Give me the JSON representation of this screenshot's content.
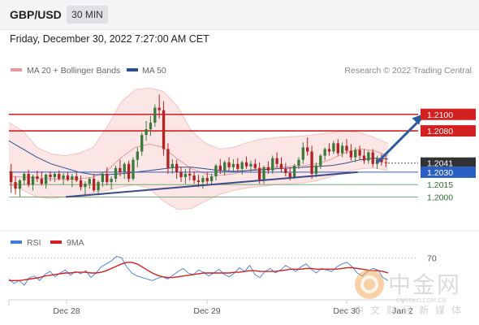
{
  "header": {
    "symbol": "GBP/USD",
    "timeframe": "30 MIN",
    "datetime": "Friday, December 30, 2022 7:27:00 AM CET"
  },
  "legend": {
    "bollinger_label": "MA 20 + Bollinger Bands",
    "ma50_label": "MA 50",
    "copyright": "Research © 2022 Trading Central"
  },
  "rsi_legend": {
    "rsi_label": "RSI",
    "ma_label": "9MA"
  },
  "watermark": {
    "name": "中金网",
    "domain": "CNGOLD.COM.CN",
    "tagline": "中文财经新媒体"
  },
  "colors": {
    "resistance": "#d32020",
    "pivot": "#2b5fc2",
    "support": "#5fa35f",
    "bull": "#3a7a3a",
    "bear": "#b22222",
    "last_price": "#333333",
    "bollinger_fill": "#fbe0e0",
    "ma20": "#e89a9a",
    "ma50": "#2d4f8e",
    "rsi_line": "#3f7cdb",
    "rsi_ma": "#d32020",
    "arrow": "#2d5aa0"
  },
  "chart_data": [
    {
      "type": "candlestick",
      "title": "GBP/USD",
      "ylim": [
        1.1965,
        1.2145
      ],
      "x_labels": [
        "Dec 28",
        "Dec 29",
        "Dec 30",
        "Jan 2"
      ],
      "levels": [
        {
          "name": "resistance-2",
          "value": 1.21,
          "label": "1.2100",
          "kind": "resistance"
        },
        {
          "name": "resistance-1",
          "value": 1.208,
          "label": "1.2080",
          "kind": "resistance"
        },
        {
          "name": "last-price",
          "value": 1.2041,
          "label": "1.2041",
          "kind": "last"
        },
        {
          "name": "pivot",
          "value": 1.203,
          "label": "1.2030",
          "kind": "pivot"
        },
        {
          "name": "support-1",
          "value": 1.2015,
          "label": "1.2015",
          "kind": "support"
        },
        {
          "name": "support-2",
          "value": 1.2,
          "label": "1.2000",
          "kind": "support"
        }
      ],
      "candles": [
        [
          1.2031,
          1.204,
          1.2005,
          1.2018
        ],
        [
          1.2018,
          1.2025,
          1.2003,
          1.201
        ],
        [
          1.201,
          1.2022,
          1.2,
          1.202
        ],
        [
          1.202,
          1.203,
          1.2015,
          1.2028
        ],
        [
          1.2028,
          1.2033,
          1.2012,
          1.2015
        ],
        [
          1.2015,
          1.2027,
          1.2008,
          1.2025
        ],
        [
          1.2025,
          1.2032,
          1.2018,
          1.2022
        ],
        [
          1.2022,
          1.2031,
          1.2014,
          1.2016
        ],
        [
          1.2016,
          1.2028,
          1.201,
          1.2027
        ],
        [
          1.2027,
          1.2031,
          1.2019,
          1.2024
        ],
        [
          1.2024,
          1.203,
          1.2018,
          1.2028
        ],
        [
          1.2028,
          1.2032,
          1.202,
          1.2022
        ],
        [
          1.2022,
          1.2029,
          1.2015,
          1.2026
        ],
        [
          1.2026,
          1.203,
          1.2019,
          1.2021
        ],
        [
          1.2021,
          1.2028,
          1.2012,
          1.2025
        ],
        [
          1.2025,
          1.203,
          1.2018,
          1.202
        ],
        [
          1.202,
          1.2026,
          1.2008,
          1.2012
        ],
        [
          1.2012,
          1.2019,
          1.2003,
          1.2016
        ],
        [
          1.2016,
          1.2024,
          1.201,
          1.2022
        ],
        [
          1.2022,
          1.2028,
          1.2006,
          1.2008
        ],
        [
          1.2008,
          1.202,
          1.2002,
          1.2018
        ],
        [
          1.2018,
          1.203,
          1.2012,
          1.2028
        ],
        [
          1.2028,
          1.2036,
          1.2014,
          1.2018
        ],
        [
          1.2018,
          1.2025,
          1.2009,
          1.2022
        ],
        [
          1.2022,
          1.2038,
          1.2018,
          1.2035
        ],
        [
          1.2035,
          1.2045,
          1.2025,
          1.203
        ],
        [
          1.203,
          1.2042,
          1.2022,
          1.204
        ],
        [
          1.204,
          1.2044,
          1.2018,
          1.2022
        ],
        [
          1.2022,
          1.2048,
          1.202,
          1.2045
        ],
        [
          1.2045,
          1.206,
          1.2036,
          1.2055
        ],
        [
          1.2055,
          1.2078,
          1.205,
          1.2075
        ],
        [
          1.2075,
          1.2092,
          1.2068,
          1.2082
        ],
        [
          1.2082,
          1.2098,
          1.2074,
          1.209
        ],
        [
          1.209,
          1.2112,
          1.2085,
          1.2108
        ],
        [
          1.2108,
          1.2124,
          1.2095,
          1.2105
        ],
        [
          1.2105,
          1.2116,
          1.205,
          1.2058
        ],
        [
          1.2058,
          1.2065,
          1.2028,
          1.2035
        ],
        [
          1.2035,
          1.2046,
          1.2028,
          1.204
        ],
        [
          1.204,
          1.2045,
          1.2022,
          1.203
        ],
        [
          1.203,
          1.2036,
          1.2018,
          1.2024
        ],
        [
          1.2024,
          1.2034,
          1.2016,
          1.2028
        ],
        [
          1.2028,
          1.2035,
          1.202,
          1.2026
        ],
        [
          1.2026,
          1.2031,
          1.2016,
          1.202
        ],
        [
          1.202,
          1.2027,
          1.2012,
          1.2018
        ],
        [
          1.2018,
          1.2026,
          1.201,
          1.2023
        ],
        [
          1.2023,
          1.203,
          1.2015,
          1.2019
        ],
        [
          1.2019,
          1.2028,
          1.2014,
          1.2025
        ],
        [
          1.2025,
          1.204,
          1.202,
          1.2038
        ],
        [
          1.2038,
          1.2046,
          1.2028,
          1.2032
        ],
        [
          1.2032,
          1.2044,
          1.2026,
          1.2042
        ],
        [
          1.2042,
          1.2048,
          1.2032,
          1.2036
        ],
        [
          1.2036,
          1.2046,
          1.203,
          1.204
        ],
        [
          1.204,
          1.2047,
          1.2031,
          1.2034
        ],
        [
          1.2034,
          1.2044,
          1.2027,
          1.2042
        ],
        [
          1.2042,
          1.2049,
          1.2034,
          1.2037
        ],
        [
          1.2037,
          1.2044,
          1.203,
          1.204
        ],
        [
          1.204,
          1.2046,
          1.2033,
          1.2035
        ],
        [
          1.2035,
          1.2042,
          1.2016,
          1.202
        ],
        [
          1.202,
          1.2038,
          1.2016,
          1.2036
        ],
        [
          1.2036,
          1.2043,
          1.2028,
          1.2032
        ],
        [
          1.2032,
          1.205,
          1.2028,
          1.2047
        ],
        [
          1.2047,
          1.2054,
          1.2035,
          1.204
        ],
        [
          1.204,
          1.2048,
          1.203,
          1.2034
        ],
        [
          1.2034,
          1.2041,
          1.2025,
          1.2029
        ],
        [
          1.2029,
          1.2036,
          1.202,
          1.2024
        ],
        [
          1.2024,
          1.204,
          1.2022,
          1.2038
        ],
        [
          1.2038,
          1.2048,
          1.2034,
          1.2045
        ],
        [
          1.2045,
          1.2066,
          1.204,
          1.206
        ],
        [
          1.206,
          1.2072,
          1.205,
          1.2055
        ],
        [
          1.2055,
          1.2062,
          1.2022,
          1.2028
        ],
        [
          1.2028,
          1.2042,
          1.2024,
          1.2038
        ],
        [
          1.2038,
          1.2052,
          1.2034,
          1.205
        ],
        [
          1.205,
          1.206,
          1.2044,
          1.2058
        ],
        [
          1.2058,
          1.2065,
          1.205,
          1.2055
        ],
        [
          1.2055,
          1.2068,
          1.2052,
          1.2065
        ],
        [
          1.2065,
          1.207,
          1.205,
          1.2053
        ],
        [
          1.2053,
          1.2066,
          1.2048,
          1.2062
        ],
        [
          1.2062,
          1.207,
          1.2052,
          1.2056
        ],
        [
          1.2056,
          1.2064,
          1.2044,
          1.2048
        ],
        [
          1.2048,
          1.206,
          1.2042,
          1.2057
        ],
        [
          1.2057,
          1.2062,
          1.2045,
          1.205
        ],
        [
          1.205,
          1.2058,
          1.204,
          1.2044
        ],
        [
          1.2044,
          1.2056,
          1.204,
          1.2054
        ],
        [
          1.2054,
          1.2058,
          1.2036,
          1.204
        ],
        [
          1.204,
          1.205,
          1.2034,
          1.2046
        ],
        [
          1.2046,
          1.2052,
          1.2038,
          1.2042
        ],
        [
          1.2042,
          1.205,
          1.2036,
          1.2041
        ]
      ],
      "ma20": [
        1.2025,
        1.2024,
        1.2023,
        1.2022,
        1.2021,
        1.2022,
        1.2024,
        1.2032,
        1.2048,
        1.206,
        1.2064,
        1.206,
        1.2046,
        1.2034,
        1.2028,
        1.2026,
        1.2028,
        1.2032,
        1.2035,
        1.2036,
        1.2037,
        1.2038,
        1.204,
        1.2046,
        1.2054,
        1.2058,
        1.2056,
        1.205
      ],
      "ma50": [
        1.2068,
        1.2058,
        1.2048,
        1.204,
        1.2035,
        1.203,
        1.2027,
        1.2027,
        1.2028,
        1.203,
        1.2032,
        1.2034,
        1.2036,
        1.2036,
        1.2034,
        1.2032,
        1.2031,
        1.2032,
        1.2033,
        1.2034,
        1.2035,
        1.2036,
        1.2037,
        1.2038,
        1.2041,
        1.2045,
        1.2047,
        1.2046
      ],
      "bb_upper": [
        1.209,
        1.208,
        1.206,
        1.2052,
        1.205,
        1.2053,
        1.206,
        1.2085,
        1.2115,
        1.213,
        1.2132,
        1.2128,
        1.211,
        1.208,
        1.2065,
        1.2058,
        1.206,
        1.2066,
        1.207,
        1.2072,
        1.2073,
        1.2074,
        1.2076,
        1.2078,
        1.208,
        1.2078,
        1.2072,
        1.2065
      ],
      "bb_lower": [
        1.2015,
        1.2008,
        1.2,
        1.1998,
        1.2,
        1.2002,
        1.2005,
        1.2008,
        1.2012,
        1.2015,
        1.201,
        1.1995,
        1.1985,
        1.1986,
        1.1995,
        1.2003,
        1.2008,
        1.2011,
        1.2013,
        1.2015,
        1.2016,
        1.2017,
        1.202,
        1.2025,
        1.203,
        1.2034,
        1.2035,
        1.2032
      ],
      "trendline": {
        "start": [
          0.15,
          1.2
        ],
        "end": [
          0.92,
          1.203
        ]
      },
      "forecast_arrow": {
        "start": [
          0.97,
          1.2041
        ],
        "end": [
          1.09,
          1.21
        ]
      }
    },
    {
      "type": "line",
      "title": "RSI",
      "ylim": [
        0,
        100
      ],
      "levels": [
        {
          "value": 70,
          "label": "70"
        }
      ],
      "series": [
        {
          "name": "RSI",
          "values": [
            42,
            36,
            40,
            34,
            44,
            46,
            40,
            48,
            52,
            45,
            50,
            54,
            47,
            52,
            49,
            53,
            44,
            50,
            58,
            62,
            66,
            72,
            70,
            58,
            50,
            46,
            44,
            42,
            40,
            43,
            45,
            42,
            47,
            52,
            56,
            50,
            48,
            54,
            51,
            46,
            50,
            55,
            48,
            45,
            50,
            57,
            52,
            60,
            48,
            44,
            52,
            56,
            50,
            54,
            60,
            56,
            52,
            58,
            62,
            55,
            50,
            56,
            54,
            52,
            58,
            62,
            64,
            58,
            50,
            46,
            52,
            56,
            54,
            44,
            40
          ]
        },
        {
          "name": "9MA",
          "values": [
            40,
            40,
            40,
            41,
            42,
            43,
            44,
            46,
            47,
            48,
            49,
            50,
            50,
            51,
            51,
            51,
            50,
            50,
            51,
            53,
            56,
            59,
            62,
            64,
            64,
            62,
            58,
            54,
            50,
            47,
            45,
            44,
            44,
            45,
            46,
            47,
            48,
            49,
            50,
            50,
            50,
            50,
            50,
            50,
            51,
            51,
            52,
            53,
            53,
            52,
            52,
            52,
            52,
            53,
            54,
            55,
            55,
            55,
            56,
            56,
            55,
            55,
            55,
            55,
            55,
            56,
            57,
            57,
            56,
            55,
            54,
            53,
            53,
            52,
            50
          ]
        }
      ]
    }
  ]
}
